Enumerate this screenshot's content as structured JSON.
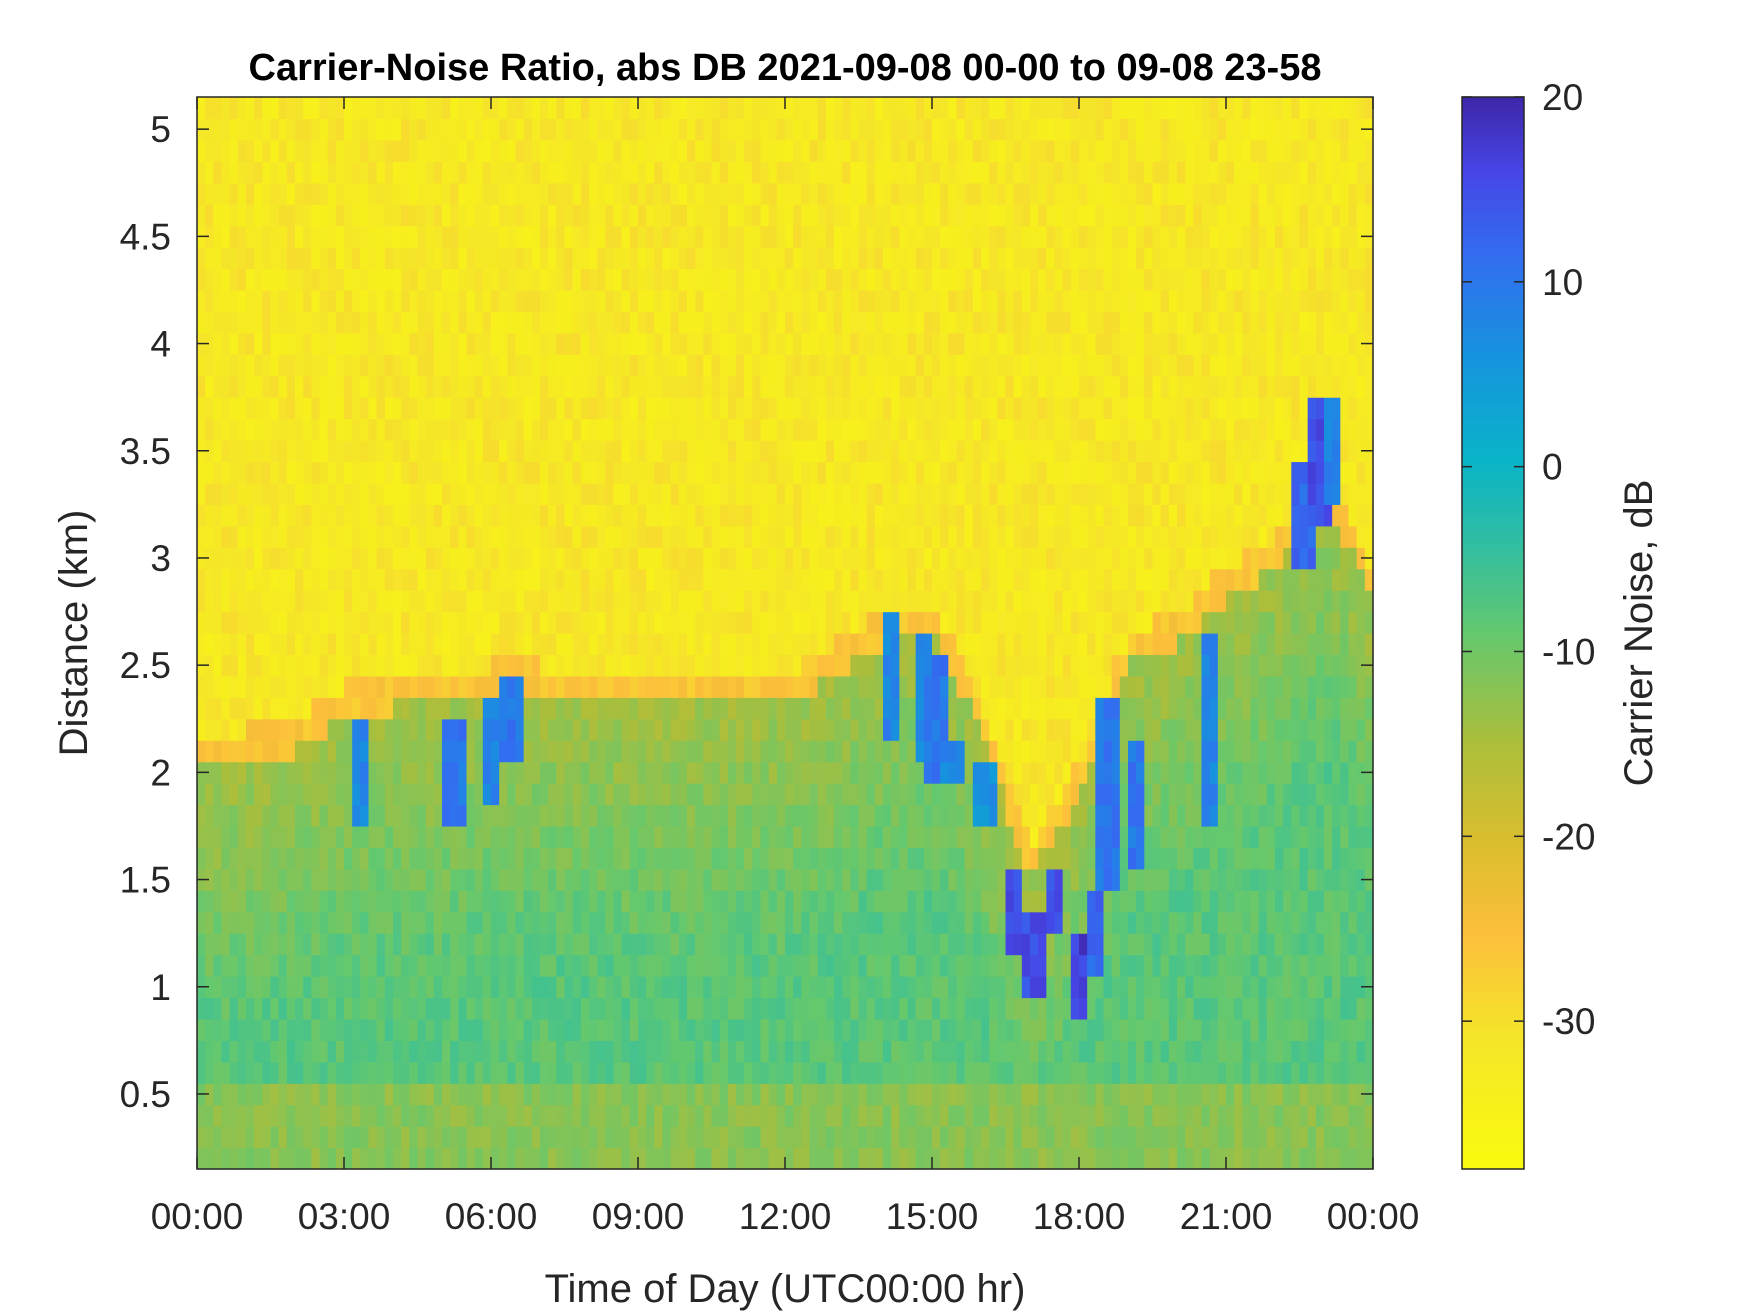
{
  "chart_data": {
    "type": "heatmap",
    "title": "Carrier-Noise Ratio, abs DB 2021-09-08 00-00 to 09-08 23-58",
    "xlabel": "Time of Day (UTC00:00 hr)",
    "ylabel": "Distance (km)",
    "colorbar_label": "Carrier Noise, dB",
    "x_range_hours": [
      0,
      24
    ],
    "ylim": [
      0.15,
      5.15
    ],
    "x_ticks": [
      {
        "hour": 0,
        "label": "00:00"
      },
      {
        "hour": 3,
        "label": "03:00"
      },
      {
        "hour": 6,
        "label": "06:00"
      },
      {
        "hour": 9,
        "label": "09:00"
      },
      {
        "hour": 12,
        "label": "12:00"
      },
      {
        "hour": 15,
        "label": "15:00"
      },
      {
        "hour": 18,
        "label": "18:00"
      },
      {
        "hour": 21,
        "label": "21:00"
      },
      {
        "hour": 24,
        "label": "00:00"
      }
    ],
    "y_ticks": [
      {
        "value": 0.5,
        "label": "0.5"
      },
      {
        "value": 1,
        "label": "1"
      },
      {
        "value": 1.5,
        "label": "1.5"
      },
      {
        "value": 2,
        "label": "2"
      },
      {
        "value": 2.5,
        "label": "2.5"
      },
      {
        "value": 3,
        "label": "3"
      },
      {
        "value": 3.5,
        "label": "3.5"
      },
      {
        "value": 4,
        "label": "4"
      },
      {
        "value": 4.5,
        "label": "4.5"
      },
      {
        "value": 5,
        "label": "5"
      }
    ],
    "colorbar": {
      "range": [
        -38,
        20
      ],
      "ticks": [
        {
          "value": 20,
          "label": "20"
        },
        {
          "value": 10,
          "label": "10"
        },
        {
          "value": 0,
          "label": "0"
        },
        {
          "value": -10,
          "label": "-10"
        },
        {
          "value": -20,
          "label": "-20"
        },
        {
          "value": -30,
          "label": "-30"
        }
      ],
      "colormap": "parula"
    },
    "top_of_signal_km": {
      "hours": [
        0,
        1,
        2,
        3,
        4,
        5,
        6,
        7,
        8,
        9,
        10,
        11,
        12,
        13,
        14,
        15,
        16,
        17,
        18,
        19,
        20,
        21,
        22,
        23,
        24
      ],
      "heights": [
        2.05,
        2.05,
        2.1,
        2.25,
        2.3,
        2.3,
        2.35,
        2.35,
        2.3,
        2.3,
        2.3,
        2.3,
        2.3,
        2.45,
        2.6,
        2.65,
        2.2,
        1.5,
        1.9,
        2.5,
        2.6,
        2.8,
        2.95,
        3.3,
        2.8
      ]
    },
    "noise_floor_dB": -32,
    "boundary_layer_dB": -14,
    "core_dB": -8,
    "features": [
      {
        "hour": 3.35,
        "km_from": 1.75,
        "km_to": 2.25,
        "dB": 8
      },
      {
        "hour": 5.25,
        "km_from": 1.75,
        "km_to": 2.25,
        "dB": 10
      },
      {
        "hour": 6.0,
        "km_from": 1.9,
        "km_to": 2.3,
        "dB": 8
      },
      {
        "hour": 6.4,
        "km_from": 2.05,
        "km_to": 2.4,
        "dB": 10
      },
      {
        "hour": 14.2,
        "km_from": 2.15,
        "km_to": 2.7,
        "dB": 8
      },
      {
        "hour": 14.8,
        "km_from": 2.1,
        "km_to": 2.6,
        "dB": 8
      },
      {
        "hour": 15.1,
        "km_from": 1.95,
        "km_to": 2.5,
        "dB": 10
      },
      {
        "hour": 15.4,
        "km_from": 1.95,
        "km_to": 2.1,
        "dB": 8
      },
      {
        "hour": 16.1,
        "km_from": 1.75,
        "km_to": 2.0,
        "dB": 6
      },
      {
        "hour": 16.7,
        "km_from": 1.15,
        "km_to": 1.5,
        "dB": 15
      },
      {
        "hour": 17.1,
        "km_from": 1.0,
        "km_to": 1.35,
        "dB": 15
      },
      {
        "hour": 17.5,
        "km_from": 1.3,
        "km_to": 1.5,
        "dB": 15
      },
      {
        "hour": 18.0,
        "km_from": 0.85,
        "km_to": 1.2,
        "dB": 17
      },
      {
        "hour": 18.3,
        "km_from": 1.1,
        "km_to": 1.4,
        "dB": 12
      },
      {
        "hour": 18.6,
        "km_from": 1.5,
        "km_to": 2.3,
        "dB": 10
      },
      {
        "hour": 19.2,
        "km_from": 1.55,
        "km_to": 2.15,
        "dB": 10
      },
      {
        "hour": 20.7,
        "km_from": 1.8,
        "km_to": 2.6,
        "dB": 8
      },
      {
        "hour": 22.6,
        "km_from": 2.95,
        "km_to": 3.45,
        "dB": 12
      },
      {
        "hour": 22.9,
        "km_from": 3.2,
        "km_to": 3.75,
        "dB": 15
      },
      {
        "hour": 23.2,
        "km_from": 3.3,
        "km_to": 3.7,
        "dB": 8
      }
    ],
    "grid": false,
    "legend": "none"
  }
}
